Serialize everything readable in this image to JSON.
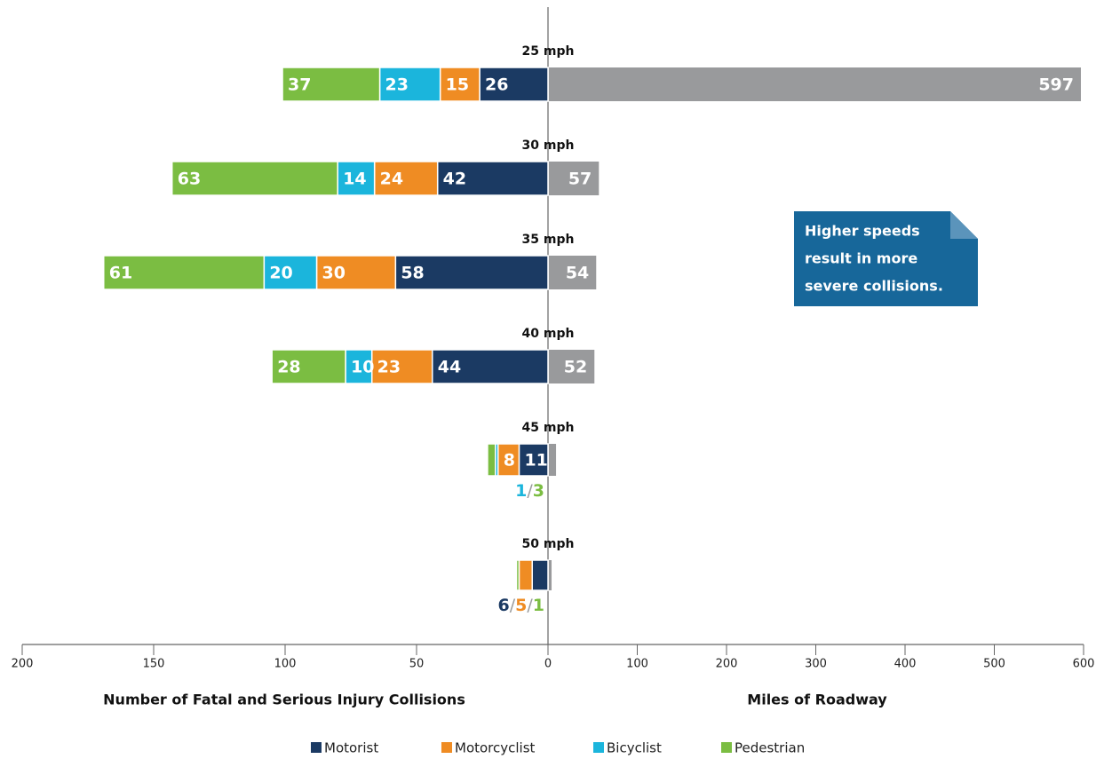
{
  "chart_data": {
    "type": "butterfly_bar",
    "categories": [
      "25 mph",
      "30 mph",
      "35 mph",
      "40 mph",
      "45 mph",
      "50 mph"
    ],
    "series": [
      {
        "name": "Motorist",
        "color": "#1b3a63",
        "values": [
          26,
          42,
          58,
          44,
          11,
          6
        ]
      },
      {
        "name": "Motorcyclist",
        "color": "#ef8c23",
        "values": [
          15,
          24,
          30,
          23,
          8,
          5
        ]
      },
      {
        "name": "Bicyclist",
        "color": "#1bb5dc",
        "values": [
          23,
          14,
          20,
          10,
          1,
          0
        ]
      },
      {
        "name": "Pedestrian",
        "color": "#7bbd42",
        "values": [
          37,
          63,
          61,
          28,
          3,
          1
        ]
      }
    ],
    "miles": {
      "color": "#999a9c",
      "values": [
        597,
        57,
        54,
        52,
        9,
        4
      ]
    },
    "label_separator": "/",
    "xlim_left": [
      0,
      200
    ],
    "xticks_left": [
      200,
      150,
      100,
      50,
      0
    ],
    "xlim_right": [
      0,
      600
    ],
    "xticks_right": [
      100,
      200,
      300,
      400,
      500,
      600
    ],
    "xlabel_left": "Number of Fatal and Serious Injury Collisions",
    "xlabel_right": "Miles of Roadway",
    "annotation": [
      "Higher speeds",
      "result in more",
      "severe collisions."
    ],
    "legend": "bottom"
  }
}
